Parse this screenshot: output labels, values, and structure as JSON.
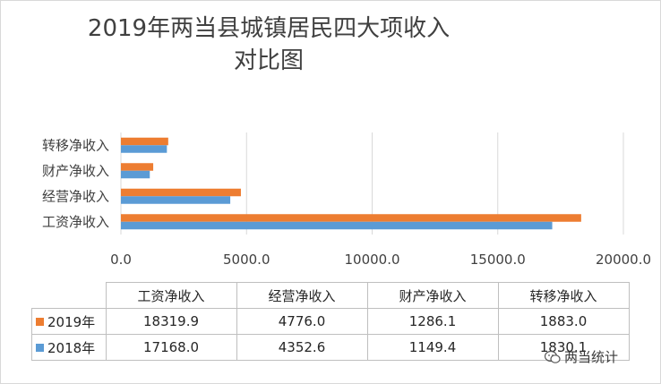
{
  "chart_data": {
    "type": "bar",
    "orientation": "horizontal",
    "title": "2019年两当县城镇居民四大项收入对比图",
    "title_lines": [
      "2019年两当县城镇居民四大项收入",
      "对比图"
    ],
    "categories": [
      "工资净收入",
      "经营净收入",
      "财产净收入",
      "转移净收入"
    ],
    "series": [
      {
        "name": "2019年",
        "color": "#ED7D31",
        "values": [
          18319.9,
          4776.0,
          1286.1,
          1883.0
        ],
        "labels": [
          "18319.9",
          "4776.0",
          "1286.1",
          "1883.0"
        ]
      },
      {
        "name": "2018年",
        "color": "#5B9BD5",
        "values": [
          17168.0,
          4352.6,
          1149.4,
          1830.1
        ],
        "labels": [
          "17168.0",
          "4352.6",
          "1149.4",
          "1830.1"
        ]
      }
    ],
    "xlim": [
      0,
      20000
    ],
    "xticks": [
      "0.0",
      "5000.0",
      "10000.0",
      "15000.0",
      "20000.0"
    ],
    "grid": true,
    "legend": "data-table"
  },
  "watermark": "两当统计"
}
